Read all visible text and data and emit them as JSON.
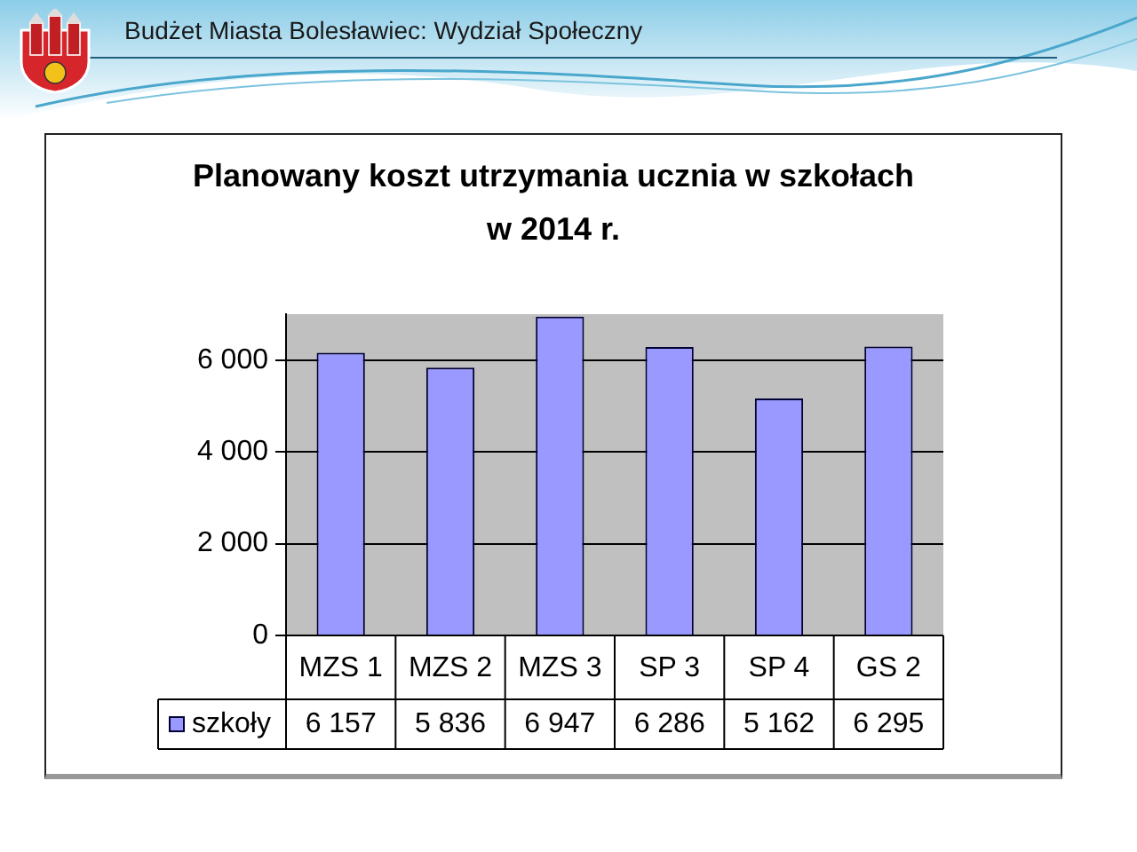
{
  "chart_data": {
    "type": "bar",
    "title": "Planowany koszt utrzymania ucznia w szkołach w 2014 r.",
    "annotations": [
      "Budżet Miasta Bolesławiec: Wydział Społeczny"
    ],
    "categories": [
      "MZS 1",
      "MZS 2",
      "MZS 3",
      "SP 3",
      "SP 4",
      "GS 2"
    ],
    "series": [
      {
        "name": "szkoły",
        "color": "#9999ff",
        "values": [
          6157,
          5836,
          6947,
          6286,
          5162,
          6295
        ],
        "value_labels": [
          "6 157",
          "5 836",
          "6 947",
          "6 286",
          "5 162",
          "6 295"
        ]
      }
    ],
    "ylim": [
      0,
      7000
    ],
    "yticks": [
      0,
      {
        "value": 2000,
        "label": "2 000"
      },
      {
        "value": 4000,
        "label": "4 000"
      },
      {
        "value": 6000,
        "label": "6 000"
      }
    ],
    "grid": "y",
    "legend": "bottom left"
  }
}
